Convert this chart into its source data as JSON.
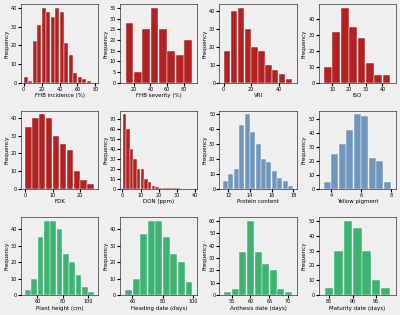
{
  "plots": [
    {
      "xlabel": "FHB incidence (%)",
      "color": "#b22222",
      "bin_edges": [
        0,
        5,
        10,
        15,
        20,
        25,
        30,
        35,
        40,
        45,
        50,
        55,
        60,
        65,
        70,
        75,
        80
      ],
      "frequencies": [
        3,
        1,
        22,
        31,
        40,
        38,
        35,
        40,
        38,
        21,
        15,
        5,
        3,
        2,
        1,
        0
      ]
    },
    {
      "xlabel": "FHB severity (%)",
      "color": "#b22222",
      "bin_edges": [
        10,
        20,
        30,
        40,
        50,
        60,
        70,
        80,
        90
      ],
      "frequencies": [
        28,
        5,
        25,
        35,
        25,
        15,
        13,
        20
      ]
    },
    {
      "xlabel": "VRI",
      "color": "#b22222",
      "bin_edges": [
        0,
        5,
        10,
        15,
        20,
        25,
        30,
        35,
        40,
        45,
        50
      ],
      "frequencies": [
        18,
        40,
        42,
        30,
        20,
        18,
        10,
        7,
        5,
        2
      ]
    },
    {
      "xlabel": "ISO",
      "color": "#b22222",
      "bin_edges": [
        5,
        10,
        15,
        20,
        25,
        30,
        35,
        40,
        45
      ],
      "frequencies": [
        10,
        32,
        47,
        35,
        28,
        12,
        5,
        5
      ]
    },
    {
      "xlabel": "FDK",
      "color": "#b22222",
      "bin_edges": [
        0,
        2.5,
        5,
        7.5,
        10,
        12.5,
        15,
        17.5,
        20,
        22.5,
        25
      ],
      "frequencies": [
        35,
        40,
        42,
        40,
        30,
        25,
        22,
        10,
        5,
        3
      ]
    },
    {
      "xlabel": "DON (ppm)",
      "color": "#b22222",
      "bin_edges": [
        0,
        2,
        4,
        6,
        8,
        10,
        12,
        14,
        16,
        18,
        20,
        22,
        24,
        26,
        28,
        30,
        32,
        34,
        36,
        38,
        40
      ],
      "frequencies": [
        75,
        60,
        40,
        30,
        20,
        20,
        10,
        7,
        3,
        2,
        1,
        1,
        1,
        1,
        1,
        1,
        0,
        0,
        0,
        0
      ]
    },
    {
      "xlabel": "Protein content",
      "color": "#7097bb",
      "bin_edges": [
        11.5,
        12.0,
        12.5,
        13.0,
        13.5,
        14.0,
        14.5,
        15.0,
        15.5,
        16.0,
        16.5,
        17.0,
        17.5,
        18.0
      ],
      "frequencies": [
        5,
        10,
        13,
        43,
        50,
        38,
        30,
        20,
        18,
        12,
        7,
        5,
        2
      ]
    },
    {
      "xlabel": "Yellow pigment",
      "color": "#7097bb",
      "bin_edges": [
        3.5,
        4.0,
        4.5,
        5.0,
        5.5,
        6.0,
        6.5,
        7.0,
        7.5,
        8.0
      ],
      "frequencies": [
        5,
        25,
        32,
        42,
        53,
        52,
        22,
        20,
        5
      ]
    },
    {
      "xlabel": "Plant height (cm)",
      "color": "#3cb371",
      "bin_edges": [
        50,
        55,
        60,
        65,
        70,
        75,
        80,
        85,
        90,
        95,
        100,
        105
      ],
      "frequencies": [
        3,
        10,
        35,
        45,
        45,
        40,
        25,
        20,
        12,
        5,
        2
      ]
    },
    {
      "xlabel": "Heading date (days)",
      "color": "#3cb371",
      "bin_edges": [
        55,
        60,
        65,
        70,
        75,
        80,
        85,
        90,
        95,
        100
      ],
      "frequencies": [
        3,
        10,
        37,
        45,
        45,
        35,
        25,
        20,
        8
      ]
    },
    {
      "xlabel": "Anthesis date (days)",
      "color": "#3cb371",
      "bin_edges": [
        53,
        55,
        57,
        59,
        61,
        63,
        65,
        67,
        69,
        71
      ],
      "frequencies": [
        3,
        5,
        35,
        60,
        35,
        25,
        20,
        5,
        3
      ]
    },
    {
      "xlabel": "Maturity date (days)",
      "color": "#3cb371",
      "bin_edges": [
        84,
        86,
        88,
        90,
        92,
        94,
        96,
        98
      ],
      "frequencies": [
        5,
        30,
        50,
        45,
        30,
        10,
        5
      ]
    }
  ],
  "ylabel": "Frequency",
  "bg_color": "#efefef"
}
